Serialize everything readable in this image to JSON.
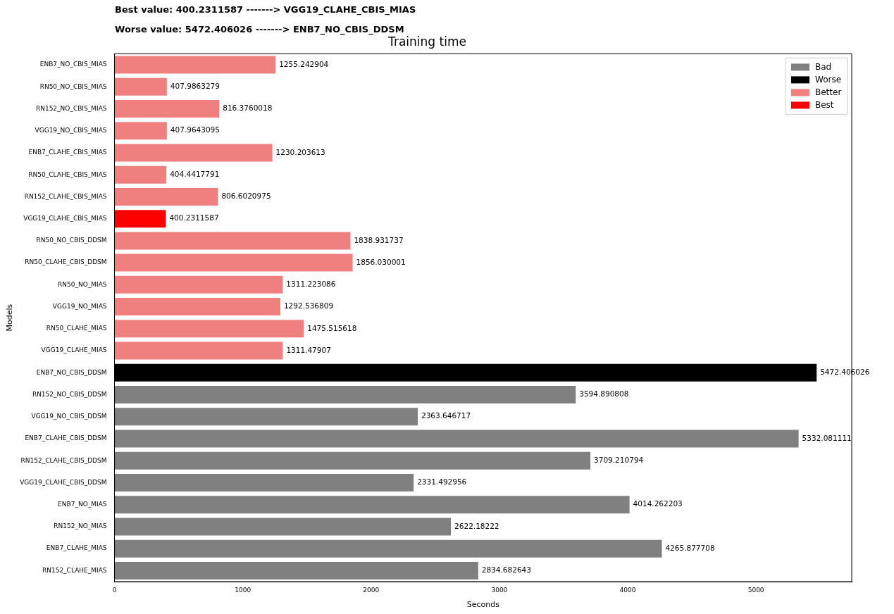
{
  "chart_data": {
    "type": "bar",
    "orientation": "horizontal",
    "title": "Training time",
    "xlabel": "Seconds",
    "ylabel": "Models",
    "annotations": [
      "Best value: 400.2311587 -------> VGG19_CLAHE_CBIS_MIAS",
      "Worse value: 5472.406026 -------> ENB7_NO_CBIS_DDSM"
    ],
    "categories": [
      "ENB7_NO_CBIS_MIAS",
      "RN50_NO_CBIS_MIAS",
      "RN152_NO_CBIS_MIAS",
      "VGG19_NO_CBIS_MIAS",
      "ENB7_CLAHE_CBIS_MIAS",
      "RN50_CLAHE_CBIS_MIAS",
      "RN152_CLAHE_CBIS_MIAS",
      "VGG19_CLAHE_CBIS_MIAS",
      "RN50_NO_CBIS_DDSM",
      "RN50_CLAHE_CBIS_DDSM",
      "RN50_NO_MIAS",
      "VGG19_NO_MIAS",
      "RN50_CLAHE_MIAS",
      "VGG19_CLAHE_MIAS",
      "ENB7_NO_CBIS_DDSM",
      "RN152_NO_CBIS_DDSM",
      "VGG19_NO_CBIS_DDSM",
      "ENB7_CLAHE_CBIS_DDSM",
      "RN152_CLAHE_CBIS_DDSM",
      "VGG19_CLAHE_CBIS_DDSM",
      "ENB7_NO_MIAS",
      "RN152_NO_MIAS",
      "ENB7_CLAHE_MIAS",
      "RN152_CLAHE_MIAS"
    ],
    "series": [
      {
        "name": "Bad",
        "color": "#808080",
        "values": [
          null,
          null,
          null,
          null,
          null,
          null,
          null,
          null,
          null,
          null,
          null,
          null,
          null,
          null,
          null,
          3594.890808,
          2363.646717,
          5332.081111,
          3709.210794,
          2331.492956,
          4014.262203,
          2622.18222,
          4265.877708,
          2834.682643
        ]
      },
      {
        "name": "Worse",
        "color": "#000000",
        "values": [
          null,
          null,
          null,
          null,
          null,
          null,
          null,
          null,
          null,
          null,
          null,
          null,
          null,
          null,
          5472.406026,
          null,
          null,
          null,
          null,
          null,
          null,
          null,
          null,
          null
        ]
      },
      {
        "name": "Better",
        "color": "#f08080",
        "values": [
          1255.242904,
          407.9863279,
          816.3760018,
          407.9643095,
          1230.203613,
          404.4417791,
          806.6020975,
          null,
          1838.931737,
          1856.030001,
          1311.223086,
          1292.536809,
          1475.515618,
          1311.47907,
          null,
          null,
          null,
          null,
          null,
          null,
          null,
          null,
          null,
          null
        ]
      },
      {
        "name": "Best",
        "color": "#ff0000",
        "values": [
          null,
          null,
          null,
          null,
          null,
          null,
          null,
          400.2311587,
          null,
          null,
          null,
          null,
          null,
          null,
          null,
          null,
          null,
          null,
          null,
          null,
          null,
          null,
          null,
          null
        ]
      }
    ],
    "xlim": [
      0,
      5746
    ],
    "xticks": [
      0,
      1000,
      2000,
      3000,
      4000,
      5000
    ],
    "data_labels": true,
    "legend": "top right",
    "grid": false
  }
}
